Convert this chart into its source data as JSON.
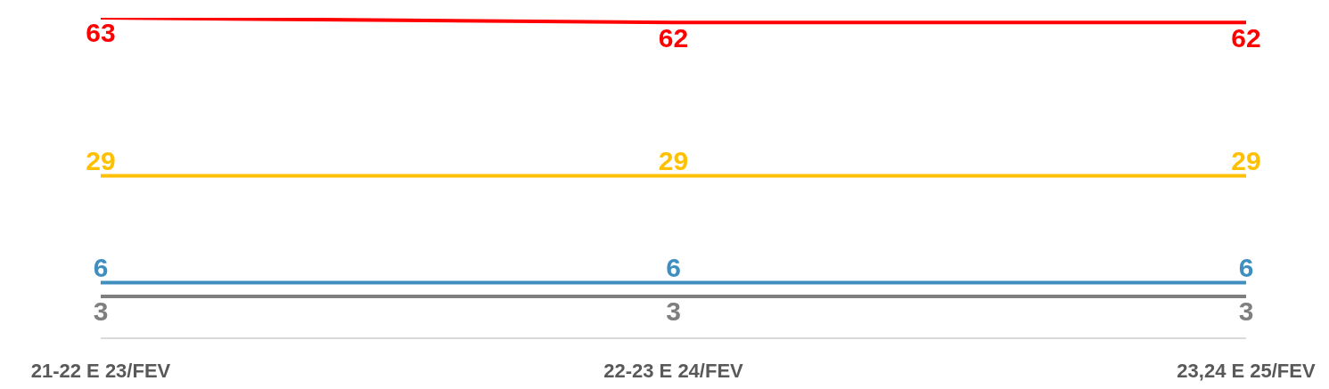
{
  "chart_data": {
    "type": "line",
    "categories": [
      "21-22 E 23/FEV",
      "22-23 E 24/FEV",
      "23,24 E 25/FEV"
    ],
    "data_labels": true,
    "marker": "none",
    "series": [
      {
        "color": "#ff0000",
        "values": [
          63,
          62,
          62
        ]
      },
      {
        "color": "#ffc000",
        "values": [
          29,
          29,
          29
        ]
      },
      {
        "color": "#3e8ebf",
        "values": [
          6,
          6,
          6
        ]
      },
      {
        "color": "#7f7f7f",
        "values": [
          3,
          3,
          3
        ]
      }
    ]
  }
}
